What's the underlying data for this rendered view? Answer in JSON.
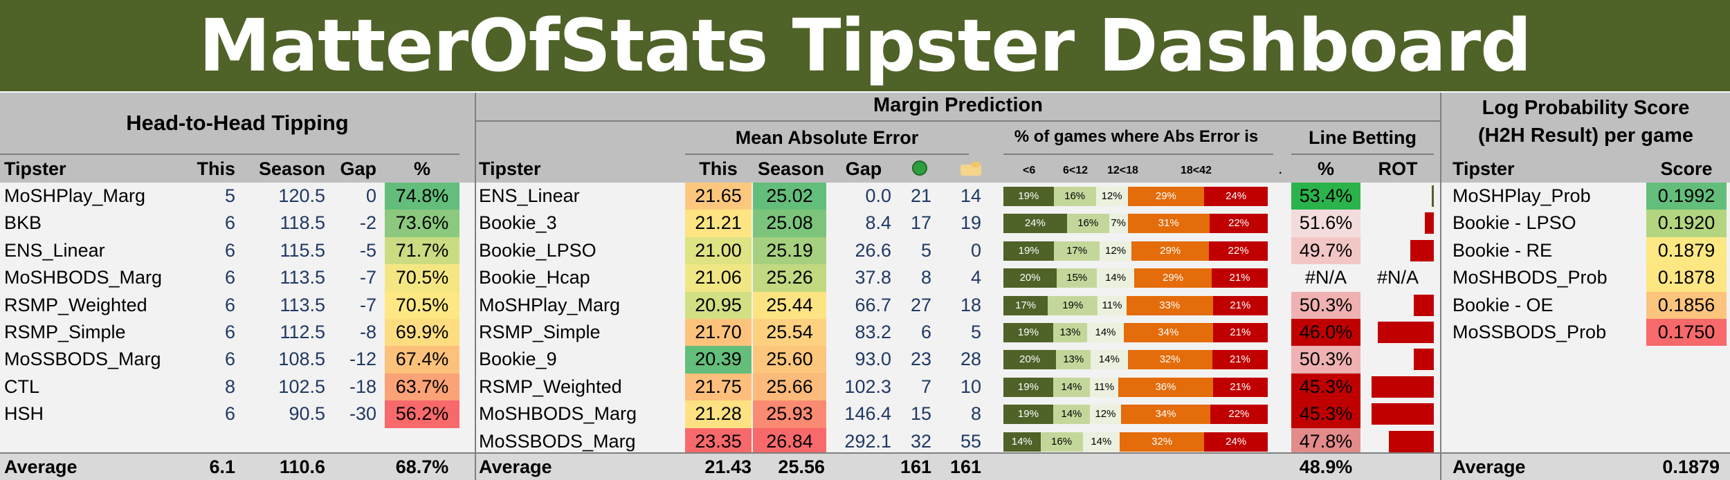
{
  "banner": {
    "title": "MatterOfStats Tipster Dashboard"
  },
  "h2h": {
    "title": "Head-to-Head Tipping",
    "columns": [
      "Tipster",
      "This",
      "Season",
      "Gap",
      "%"
    ],
    "rows": [
      {
        "tipster": "MoSHPlay_Marg",
        "this": "5",
        "season": "120.5",
        "gap": "0",
        "pct": "74.8%",
        "color": "#63be7b"
      },
      {
        "tipster": "BKB",
        "this": "6",
        "season": "118.5",
        "gap": "-2",
        "pct": "73.6%",
        "color": "#8cc97e"
      },
      {
        "tipster": "ENS_Linear",
        "this": "6",
        "season": "115.5",
        "gap": "-5",
        "pct": "71.7%",
        "color": "#cadc81"
      },
      {
        "tipster": "MoSHBODS_Marg",
        "this": "6",
        "season": "113.5",
        "gap": "-7",
        "pct": "70.5%",
        "color": "#f4e783"
      },
      {
        "tipster": "RSMP_Weighted",
        "this": "6",
        "season": "113.5",
        "gap": "-7",
        "pct": "70.5%",
        "color": "#fde883"
      },
      {
        "tipster": "RSMP_Simple",
        "this": "6",
        "season": "112.5",
        "gap": "-8",
        "pct": "69.9%",
        "color": "#fedd81"
      },
      {
        "tipster": "MoSSBODS_Marg",
        "this": "6",
        "season": "108.5",
        "gap": "-12",
        "pct": "67.4%",
        "color": "#fcc17b"
      },
      {
        "tipster": "CTL",
        "this": "8",
        "season": "102.5",
        "gap": "-18",
        "pct": "63.7%",
        "color": "#fba276"
      },
      {
        "tipster": "HSH",
        "this": "6",
        "season": "90.5",
        "gap": "-30",
        "pct": "56.2%",
        "color": "#f8696b"
      }
    ],
    "average": {
      "label": "Average",
      "this": "6.1",
      "season": "110.6",
      "pct": "68.7%"
    }
  },
  "margin": {
    "title": "Margin Prediction",
    "mae_title": "Mean Absolute Error",
    "abs_title": "% of games where Abs Error is",
    "line_title": "Line Betting",
    "columns": [
      "Tipster",
      "This",
      "Season",
      "Gap",
      "%",
      "ROT"
    ],
    "abs_buckets": [
      "<6",
      "6<12",
      "12<18",
      "18<42",
      "."
    ],
    "icons": {
      "win": "green-circle-icon",
      "loss": "folder-hand-icon"
    },
    "rows": [
      {
        "tipster": "ENS_Linear",
        "this": "21.65",
        "this_color": "#fdc87d",
        "season": "25.02",
        "season_color": "#63be7b",
        "gap": "0.0",
        "c1": "21",
        "c2": "14",
        "segs": [
          "19%",
          "16%",
          "12%",
          "29%",
          "24%"
        ],
        "seg_vals": [
          19,
          16,
          12,
          29,
          24
        ],
        "line": "53.4%",
        "line_color": "#2bb34b",
        "rot": 0.03
      },
      {
        "tipster": "Bookie_3",
        "this": "21.21",
        "this_color": "#fee482",
        "season": "25.08",
        "season_color": "#7cc47c",
        "gap": "8.4",
        "c1": "17",
        "c2": "19",
        "segs": [
          "24%",
          "16%",
          "7%",
          "31%",
          "22%"
        ],
        "seg_vals": [
          24,
          16,
          7,
          31,
          22
        ],
        "line": "51.6%",
        "line_color": "#f4dcdc",
        "rot": 0.14
      },
      {
        "tipster": "Bookie_LPSO",
        "this": "21.00",
        "this_color": "#dee383",
        "season": "25.19",
        "season_color": "#a6d07f",
        "gap": "26.6",
        "c1": "5",
        "c2": "0",
        "segs": [
          "19%",
          "17%",
          "12%",
          "29%",
          "22%"
        ],
        "seg_vals": [
          19,
          17,
          12,
          29,
          22
        ],
        "line": "49.7%",
        "line_color": "#f3c6c6",
        "rot": 0.38
      },
      {
        "tipster": "Bookie_Hcap",
        "this": "21.06",
        "this_color": "#f0e684",
        "season": "25.26",
        "season_color": "#c2d981",
        "gap": "37.8",
        "c1": "8",
        "c2": "4",
        "segs": [
          "20%",
          "15%",
          "14%",
          "29%",
          "21%"
        ],
        "seg_vals": [
          20,
          15,
          14,
          29,
          21
        ],
        "line": "#N/A",
        "line_color": "#f2f2f2",
        "rot_text": "#N/A"
      },
      {
        "tipster": "MoSHPlay_Marg",
        "this": "20.95",
        "this_color": "#d2df82",
        "season": "25.44",
        "season_color": "#fde483",
        "gap": "66.7",
        "c1": "27",
        "c2": "18",
        "segs": [
          "17%",
          "19%",
          "11%",
          "33%",
          "21%"
        ],
        "seg_vals": [
          17,
          19,
          11,
          33,
          21
        ],
        "line": "50.3%",
        "line_color": "#efb1b1",
        "rot": 0.32
      },
      {
        "tipster": "RSMP_Simple",
        "this": "21.70",
        "this_color": "#fdc37c",
        "season": "25.54",
        "season_color": "#fdd17f",
        "gap": "83.2",
        "c1": "6",
        "c2": "5",
        "segs": [
          "19%",
          "13%",
          "14%",
          "34%",
          "21%"
        ],
        "seg_vals": [
          19,
          13,
          14,
          34,
          21
        ],
        "line": "46.0%",
        "line_color": "#c00000",
        "rot": 0.9
      },
      {
        "tipster": "Bookie_9",
        "this": "20.39",
        "this_color": "#63be7b",
        "season": "25.60",
        "season_color": "#fdc67d",
        "gap": "93.0",
        "c1": "23",
        "c2": "28",
        "segs": [
          "20%",
          "13%",
          "14%",
          "32%",
          "21%"
        ],
        "seg_vals": [
          20,
          13,
          14,
          32,
          21
        ],
        "line": "50.3%",
        "line_color": "#efb1b1",
        "rot": 0.32
      },
      {
        "tipster": "RSMP_Weighted",
        "this": "21.75",
        "this_color": "#fdbf7b",
        "season": "25.66",
        "season_color": "#fcbb7a",
        "gap": "102.3",
        "c1": "7",
        "c2": "10",
        "segs": [
          "19%",
          "14%",
          "11%",
          "36%",
          "21%"
        ],
        "seg_vals": [
          19,
          14,
          11,
          36,
          21
        ],
        "line": "45.3%",
        "line_color": "#c00000",
        "rot": 1.0
      },
      {
        "tipster": "MoSHBODS_Marg",
        "this": "21.28",
        "this_color": "#fee182",
        "season": "25.93",
        "season_color": "#fa8a72",
        "gap": "146.4",
        "c1": "15",
        "c2": "8",
        "segs": [
          "19%",
          "14%",
          "12%",
          "34%",
          "22%"
        ],
        "seg_vals": [
          19,
          14,
          12,
          34,
          22
        ],
        "line": "45.3%",
        "line_color": "#c00000",
        "rot": 1.0
      },
      {
        "tipster": "MoSSBODS_Marg",
        "this": "23.35",
        "this_color": "#f8696b",
        "season": "26.84",
        "season_color": "#f8696b",
        "gap": "292.1",
        "c1": "32",
        "c2": "55",
        "segs": [
          "14%",
          "16%",
          "14%",
          "32%",
          "24%"
        ],
        "seg_vals": [
          14,
          16,
          14,
          32,
          24
        ],
        "line": "47.8%",
        "line_color": "#e38b8b",
        "rot": 0.72
      }
    ],
    "average": {
      "label": "Average",
      "this": "21.43",
      "season": "25.56",
      "c1": "161",
      "c2": "161",
      "line": "48.9%"
    }
  },
  "logprob": {
    "title_line1": "Log Probability Score",
    "title_line2": "(H2H Result) per game",
    "columns": [
      "Tipster",
      "Score"
    ],
    "rows": [
      {
        "tipster": "MoSHPlay_Prob",
        "score": "0.1992",
        "color": "#63be7b"
      },
      {
        "tipster": "Bookie - LPSO",
        "score": "0.1920",
        "color": "#b3d580"
      },
      {
        "tipster": "Bookie - RE",
        "score": "0.1879",
        "color": "#fee883"
      },
      {
        "tipster": "MoSHBODS_Prob",
        "score": "0.1878",
        "color": "#fee683"
      },
      {
        "tipster": "Bookie - OE",
        "score": "0.1856",
        "color": "#fdc47d"
      },
      {
        "tipster": "MoSSBODS_Prob",
        "score": "0.1750",
        "color": "#f8696b"
      }
    ],
    "average": {
      "label": "Average",
      "score": "0.1879"
    }
  }
}
